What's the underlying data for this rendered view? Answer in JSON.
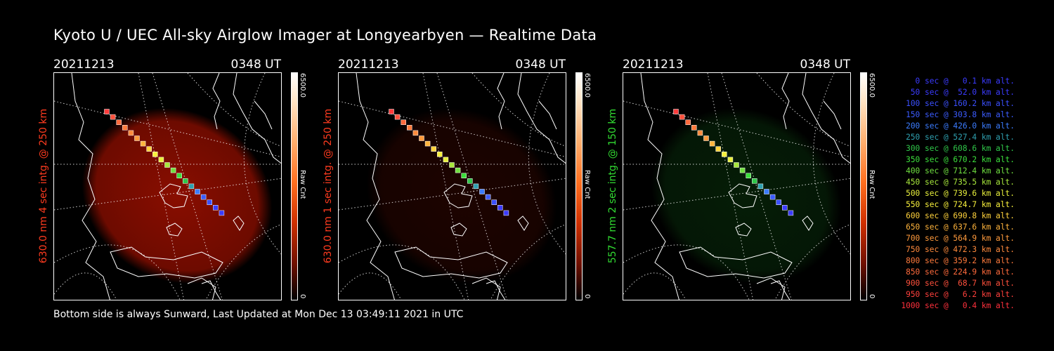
{
  "title": "Kyoto U / UEC All-sky Airglow Imager at Longyearbyen — Realtime Data",
  "footer": "Bottom side is always Sunward, Last Updated at Mon Dec 13 03:49:11 2021 in UTC",
  "panels": [
    {
      "date": "20211213",
      "time": "0348 UT",
      "ylabel": "630.0 nm 4 sec intg. @ 250 km",
      "ylabel_color": "#ff3b1f",
      "cbar_max": "6500.0",
      "cbar_unit": "Raw Cnt",
      "cbar_min": "0",
      "tint": "#a11000",
      "tint_level": 0.85
    },
    {
      "date": "20211213",
      "time": "0348 UT",
      "ylabel": "630.0 nm 1 sec intg. @ 250 km",
      "ylabel_color": "#ff3b1f",
      "cbar_max": "6500.0",
      "cbar_unit": "Raw Cnt",
      "cbar_min": "0",
      "tint": "#3a0700",
      "tint_level": 0.5
    },
    {
      "date": "20211213",
      "time": "0348 UT",
      "ylabel": "557.7 nm 2 sec intg. @ 150 km",
      "ylabel_color": "#32dc32",
      "cbar_max": "6500.0",
      "cbar_unit": "Raw Cnt",
      "cbar_min": "0",
      "tint": "#0b3a0e",
      "tint_level": 0.5
    }
  ],
  "legend": [
    {
      "text": "0 sec @   0.1 km alt.",
      "color": "#3b3bff"
    },
    {
      "text": "50 sec @  52.0 km alt.",
      "color": "#3b3bff"
    },
    {
      "text": "100 sec @ 160.2 km alt.",
      "color": "#3b50ff"
    },
    {
      "text": "150 sec @ 303.8 km alt.",
      "color": "#3b5cff"
    },
    {
      "text": "200 sec @ 426.0 km alt.",
      "color": "#3b7cff"
    },
    {
      "text": "250 sec @ 527.4 km alt.",
      "color": "#2fa0b0"
    },
    {
      "text": "300 sec @ 608.6 km alt.",
      "color": "#30c84a"
    },
    {
      "text": "350 sec @ 670.2 km alt.",
      "color": "#3ce03c"
    },
    {
      "text": "400 sec @ 712.4 km alt.",
      "color": "#70e040"
    },
    {
      "text": "450 sec @ 735.5 km alt.",
      "color": "#a8e83c"
    },
    {
      "text": "500 sec @ 739.6 km alt.",
      "color": "#e8f03c"
    },
    {
      "text": "550 sec @ 724.7 km alt.",
      "color": "#f8f03c"
    },
    {
      "text": "600 sec @ 690.8 km alt.",
      "color": "#ffd23c"
    },
    {
      "text": "650 sec @ 637.6 km alt.",
      "color": "#ffb43c"
    },
    {
      "text": "700 sec @ 564.9 km alt.",
      "color": "#ff9a3c"
    },
    {
      "text": "750 sec @ 472.3 km alt.",
      "color": "#ff8a3c"
    },
    {
      "text": "800 sec @ 359.2 km alt.",
      "color": "#ff7a3c"
    },
    {
      "text": "850 sec @ 224.9 km alt.",
      "color": "#ff6a3c"
    },
    {
      "text": "900 sec @  68.7 km alt.",
      "color": "#ff503c"
    },
    {
      "text": "950 sec @   6.2 km alt.",
      "color": "#ff403c"
    },
    {
      "text": "1000 sec @   0.4 km alt.",
      "color": "#ff303c"
    }
  ]
}
